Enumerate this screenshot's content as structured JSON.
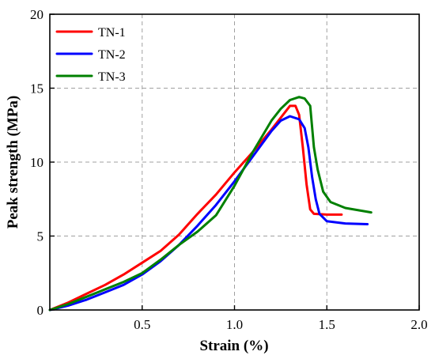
{
  "chart_data": {
    "type": "line",
    "xlabel": "Strain (%)",
    "ylabel": "Peak strength (MPa)",
    "xlim": [
      0,
      2.0
    ],
    "ylim": [
      0,
      20
    ],
    "xticks": [
      0.5,
      1.0,
      1.5,
      2.0
    ],
    "xtick_labels": [
      "0.5",
      "1.0",
      "1.5",
      "2.0"
    ],
    "yticks": [
      0,
      5,
      10,
      15,
      20
    ],
    "ytick_labels": [
      "0",
      "5",
      "10",
      "15",
      "20"
    ],
    "grid": true,
    "legend_position": "top-left",
    "series": [
      {
        "name": "TN-1",
        "color": "#ff0000",
        "x": [
          0.0,
          0.1,
          0.2,
          0.3,
          0.4,
          0.5,
          0.6,
          0.7,
          0.8,
          0.9,
          1.0,
          1.1,
          1.2,
          1.25,
          1.3,
          1.33,
          1.35,
          1.37,
          1.39,
          1.41,
          1.43,
          1.5,
          1.58
        ],
        "y": [
          0.0,
          0.5,
          1.1,
          1.7,
          2.4,
          3.2,
          4.0,
          5.1,
          6.5,
          7.8,
          9.3,
          10.7,
          12.2,
          13.0,
          13.8,
          13.8,
          13.2,
          11.0,
          8.5,
          6.8,
          6.5,
          6.45,
          6.45
        ]
      },
      {
        "name": "TN-2",
        "color": "#0000ff",
        "x": [
          0.0,
          0.1,
          0.2,
          0.3,
          0.4,
          0.5,
          0.6,
          0.7,
          0.8,
          0.9,
          1.0,
          1.1,
          1.2,
          1.25,
          1.3,
          1.35,
          1.38,
          1.4,
          1.42,
          1.44,
          1.46,
          1.5,
          1.6,
          1.72
        ],
        "y": [
          0.0,
          0.3,
          0.7,
          1.2,
          1.7,
          2.4,
          3.3,
          4.4,
          5.7,
          7.1,
          8.7,
          10.4,
          12.1,
          12.8,
          13.1,
          12.9,
          12.3,
          11.0,
          9.0,
          7.5,
          6.5,
          6.0,
          5.85,
          5.8
        ]
      },
      {
        "name": "TN-3",
        "color": "#008000",
        "x": [
          0.0,
          0.1,
          0.2,
          0.3,
          0.4,
          0.5,
          0.6,
          0.7,
          0.8,
          0.9,
          1.0,
          1.1,
          1.2,
          1.25,
          1.3,
          1.35,
          1.38,
          1.41,
          1.43,
          1.45,
          1.48,
          1.52,
          1.6,
          1.74
        ],
        "y": [
          0.0,
          0.4,
          0.9,
          1.4,
          1.9,
          2.5,
          3.4,
          4.4,
          5.3,
          6.4,
          8.4,
          10.7,
          12.8,
          13.6,
          14.2,
          14.4,
          14.3,
          13.8,
          11.0,
          9.5,
          8.0,
          7.3,
          6.9,
          6.6
        ]
      }
    ]
  }
}
